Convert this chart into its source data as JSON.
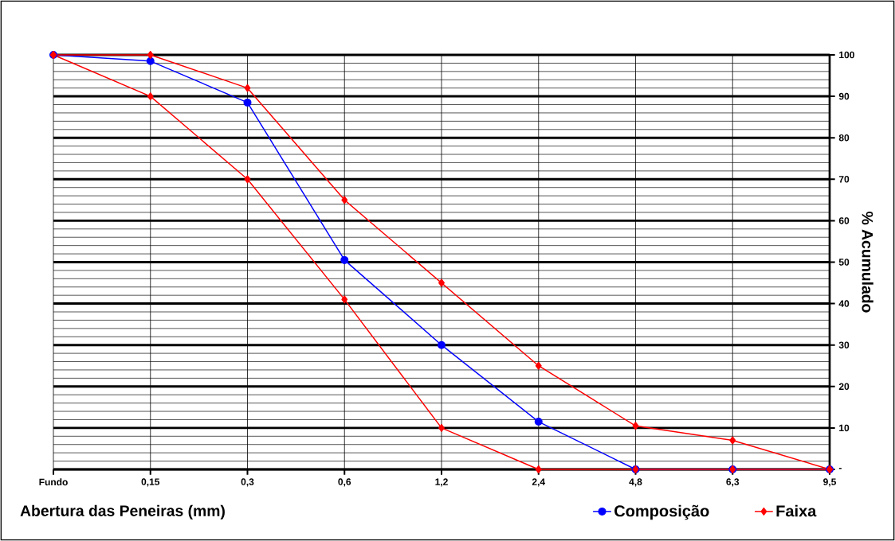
{
  "chart_data": {
    "type": "line",
    "xlabel": "Abertura das Peneiras (mm)",
    "ylabel": "% Acumulado",
    "categories": [
      "Fundo",
      "0,15",
      "0,3",
      "0,6",
      "1,2",
      "2,4",
      "4,8",
      "6,3",
      "9,5"
    ],
    "series": [
      {
        "name": "Composição",
        "color": "#0000ff",
        "marker": "circle",
        "values": [
          100,
          98.5,
          88.5,
          50.5,
          30,
          11.5,
          0,
          0,
          0
        ]
      },
      {
        "name": "Faixa",
        "color": "#ff0000",
        "marker": "diamond",
        "values": [
          100,
          100,
          92,
          65,
          45,
          25,
          10.5,
          7,
          0
        ]
      },
      {
        "color": "#ff0000",
        "marker": "diamond",
        "values": [
          100,
          90,
          70,
          41,
          10,
          0,
          0,
          0,
          0
        ]
      }
    ],
    "ylim": [
      0,
      100
    ],
    "yticks": [
      {
        "value": 0,
        "label": "-"
      },
      {
        "value": 2,
        "label": null
      },
      {
        "value": 4,
        "label": null
      },
      {
        "value": 6,
        "label": null
      },
      {
        "value": 8,
        "label": null
      },
      10,
      {
        "value": 12,
        "label": null
      },
      {
        "value": 14,
        "label": null
      },
      {
        "value": 16,
        "label": null
      },
      {
        "value": 18,
        "label": null
      },
      20,
      {
        "value": 22,
        "label": null
      },
      {
        "value": 24,
        "label": null
      },
      {
        "value": 26,
        "label": null
      },
      {
        "value": 28,
        "label": null
      },
      30,
      {
        "value": 32,
        "label": null
      },
      {
        "value": 34,
        "label": null
      },
      {
        "value": 36,
        "label": null
      },
      {
        "value": 38,
        "label": null
      },
      40,
      {
        "value": 42,
        "label": null
      },
      {
        "value": 44,
        "label": null
      },
      {
        "value": 46,
        "label": null
      },
      {
        "value": 48,
        "label": null
      },
      50,
      {
        "value": 52,
        "label": null
      },
      {
        "value": 54,
        "label": null
      },
      {
        "value": 56,
        "label": null
      },
      {
        "value": 58,
        "label": null
      },
      60,
      {
        "value": 62,
        "label": null
      },
      {
        "value": 64,
        "label": null
      },
      {
        "value": 66,
        "label": null
      },
      {
        "value": 68,
        "label": null
      },
      70,
      {
        "value": 72,
        "label": null
      },
      {
        "value": 74,
        "label": null
      },
      {
        "value": 76,
        "label": null
      },
      {
        "value": 78,
        "label": null
      },
      80,
      {
        "value": 82,
        "label": null
      },
      {
        "value": 84,
        "label": null
      },
      {
        "value": 86,
        "label": null
      },
      {
        "value": 88,
        "label": null
      },
      90,
      {
        "value": 92,
        "label": null
      },
      {
        "value": 94,
        "label": null
      },
      {
        "value": 96,
        "label": null
      },
      {
        "value": 98,
        "label": null
      },
      100
    ],
    "grid": true,
    "legend": "bottom",
    "line_style": "solid"
  }
}
